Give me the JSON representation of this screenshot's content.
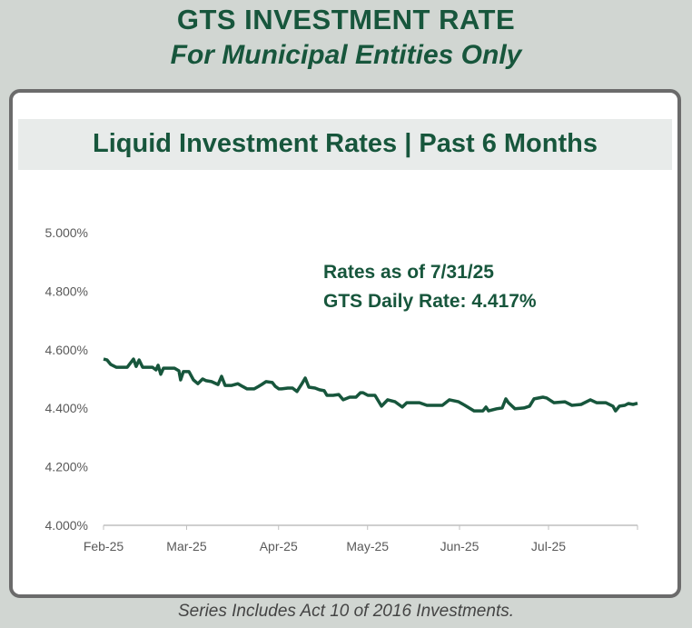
{
  "header": {
    "title": "GTS INVESTMENT RATE",
    "subtitle": "For Municipal Entities Only"
  },
  "footer": "Series Includes Act 10 of 2016 Investments.",
  "chart_data": {
    "type": "line",
    "title": "Liquid Investment Rates | Past 6 Months",
    "xlabel": "",
    "ylabel": "",
    "ylim": [
      4.0,
      5.0
    ],
    "y_ticks": [
      "4.000%",
      "4.200%",
      "4.400%",
      "4.600%",
      "4.800%",
      "5.000%"
    ],
    "y_tick_values": [
      4.0,
      4.2,
      4.4,
      4.6,
      4.8,
      5.0
    ],
    "x_ticks": [
      "Feb-25",
      "Mar-25",
      "Apr-25",
      "May-25",
      "Jun-25",
      "Jul-25"
    ],
    "x_tick_days": [
      0,
      28,
      59,
      89,
      120,
      150
    ],
    "x_range_days": [
      0,
      180
    ],
    "x_unit": "days since 2025-02-01",
    "grid": false,
    "color": "#17563c",
    "annotations": [
      "Rates as of 7/31/25",
      "GTS Daily Rate: 4.417%"
    ],
    "series": [
      {
        "name": "GTS Daily Rate",
        "points": [
          [
            0,
            4.568
          ],
          [
            1.2,
            4.565
          ],
          [
            2.4,
            4.55
          ],
          [
            4.3,
            4.54
          ],
          [
            8,
            4.54
          ],
          [
            10.1,
            4.568
          ],
          [
            11,
            4.543
          ],
          [
            12,
            4.565
          ],
          [
            13.2,
            4.54
          ],
          [
            16.5,
            4.54
          ],
          [
            17.7,
            4.531
          ],
          [
            18.4,
            4.547
          ],
          [
            19.3,
            4.516
          ],
          [
            20.2,
            4.537
          ],
          [
            23.9,
            4.537
          ],
          [
            25.4,
            4.528
          ],
          [
            26,
            4.497
          ],
          [
            26.9,
            4.525
          ],
          [
            28.8,
            4.525
          ],
          [
            30.3,
            4.497
          ],
          [
            31.8,
            4.484
          ],
          [
            33.4,
            4.5
          ],
          [
            34.6,
            4.494
          ],
          [
            36.4,
            4.491
          ],
          [
            38.6,
            4.481
          ],
          [
            39.8,
            4.509
          ],
          [
            41,
            4.478
          ],
          [
            43.2,
            4.478
          ],
          [
            45.3,
            4.484
          ],
          [
            46.8,
            4.475
          ],
          [
            48.4,
            4.466
          ],
          [
            50.8,
            4.466
          ],
          [
            52.3,
            4.475
          ],
          [
            53.3,
            4.481
          ],
          [
            54.8,
            4.491
          ],
          [
            56.9,
            4.488
          ],
          [
            57.9,
            4.475
          ],
          [
            59.1,
            4.466
          ],
          [
            60,
            4.466
          ],
          [
            62.1,
            4.469
          ],
          [
            63.7,
            4.469
          ],
          [
            65.2,
            4.457
          ],
          [
            66.7,
            4.481
          ],
          [
            68,
            4.503
          ],
          [
            69.2,
            4.472
          ],
          [
            71.3,
            4.469
          ],
          [
            72.8,
            4.463
          ],
          [
            74.4,
            4.46
          ],
          [
            75.3,
            4.444
          ],
          [
            77.4,
            4.444
          ],
          [
            79.3,
            4.447
          ],
          [
            80.8,
            4.429
          ],
          [
            83,
            4.438
          ],
          [
            85.1,
            4.438
          ],
          [
            86.6,
            4.453
          ],
          [
            87.5,
            4.453
          ],
          [
            89.1,
            4.444
          ],
          [
            91.5,
            4.444
          ],
          [
            93.7,
            4.407
          ],
          [
            95.8,
            4.429
          ],
          [
            98.3,
            4.422
          ],
          [
            100.7,
            4.404
          ],
          [
            102.2,
            4.419
          ],
          [
            106.5,
            4.419
          ],
          [
            109,
            4.41
          ],
          [
            114.2,
            4.41
          ],
          [
            116.6,
            4.429
          ],
          [
            119.7,
            4.422
          ],
          [
            121.8,
            4.41
          ],
          [
            124.9,
            4.391
          ],
          [
            127.9,
            4.391
          ],
          [
            128.9,
            4.404
          ],
          [
            129.8,
            4.391
          ],
          [
            132.5,
            4.398
          ],
          [
            134.4,
            4.401
          ],
          [
            135.6,
            4.432
          ],
          [
            136.5,
            4.419
          ],
          [
            138.7,
            4.398
          ],
          [
            141.7,
            4.401
          ],
          [
            143.6,
            4.407
          ],
          [
            145.1,
            4.432
          ],
          [
            148.1,
            4.438
          ],
          [
            149.4,
            4.435
          ],
          [
            151.8,
            4.419
          ],
          [
            155.5,
            4.422
          ],
          [
            157.9,
            4.41
          ],
          [
            161,
            4.413
          ],
          [
            164.1,
            4.429
          ],
          [
            166.2,
            4.419
          ],
          [
            169.3,
            4.419
          ],
          [
            171.7,
            4.407
          ],
          [
            172.6,
            4.391
          ],
          [
            173.9,
            4.407
          ],
          [
            175.7,
            4.41
          ],
          [
            176.9,
            4.416
          ],
          [
            178.5,
            4.413
          ],
          [
            180,
            4.417
          ]
        ]
      }
    ]
  }
}
